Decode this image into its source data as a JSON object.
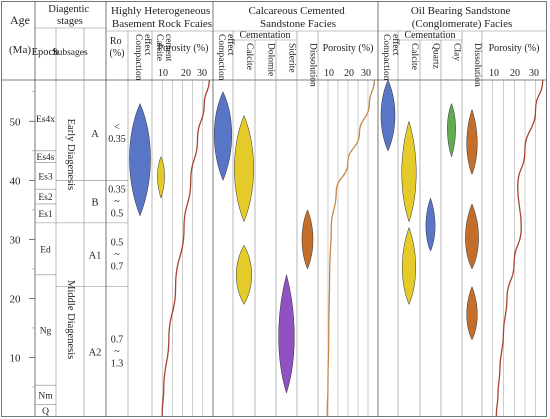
{
  "headers": {
    "age": "Age",
    "ma": "(Ma)",
    "diagenetic_stages": "Diagentic stages",
    "epoch": "Epoch",
    "subsages": "Subsages",
    "ro": "Ro (%)"
  },
  "facies": [
    {
      "id": "f1",
      "title_line1": "Highly Heterogeneous",
      "title_line2": "Basement Rock Fcaies",
      "cols": [
        "Compaction effect",
        "Calcite cement"
      ],
      "porosity_label": "Porosity (%)",
      "porosity_ticks": [
        "10",
        "20",
        "30"
      ]
    },
    {
      "id": "f2",
      "title_line1": "Calcareous Cemented",
      "title_line2": "Sandstone Facies",
      "cols": [
        "Compaction effect",
        "Calcite",
        "Dolomie",
        "Siderite",
        "Dissolution"
      ],
      "cementation_label": "Cementation",
      "porosity_label": "Porosity (%)",
      "porosity_ticks": [
        "10",
        "20",
        "30"
      ]
    },
    {
      "id": "f3",
      "title_line1": "Oil Bearing Sandstone",
      "title_line2": "(Conglomerate) Facies",
      "cols": [
        "Compaction effect",
        "Calcite",
        "Quartz",
        "Clay",
        "Dissolution"
      ],
      "cementation_label": "Cementation",
      "porosity_label": "Porosity (%)",
      "porosity_ticks": [
        "10",
        "20",
        "30"
      ]
    }
  ],
  "age_ticks": [
    "10",
    "20",
    "30",
    "40",
    "50"
  ],
  "strata": [
    "Es4x",
    "Es4s",
    "Es3",
    "Es2",
    "Es1",
    "Ed",
    "Ng",
    "Nm",
    "Q"
  ],
  "epochs": [
    "Early Diagenesis",
    "Middle Diagenesis"
  ],
  "subsages": [
    "A",
    "B",
    "A1",
    "A2"
  ],
  "ro_values": [
    {
      "line1": "<",
      "line2": "0.35"
    },
    {
      "line1": "0.35",
      "line2": "~",
      "line3": "0.5"
    },
    {
      "line1": "0.5",
      "line2": "~",
      "line3": "0.7"
    },
    {
      "line1": "0.7",
      "line2": "~",
      "line3": "1.3"
    }
  ],
  "chart_data": {
    "type": "diagram",
    "y_axis": {
      "label": "Age (Ma)",
      "range": [
        0,
        57
      ],
      "reversed": false
    },
    "stratigraphy": [
      {
        "unit": "Es4x",
        "top": 56,
        "bottom": 45
      },
      {
        "unit": "Es4s",
        "top": 45,
        "bottom": 43
      },
      {
        "unit": "Es3",
        "top": 43,
        "bottom": 38.5
      },
      {
        "unit": "Es2",
        "top": 38.5,
        "bottom": 36
      },
      {
        "unit": "Es1",
        "top": 36,
        "bottom": 32.8
      },
      {
        "unit": "Ed",
        "top": 32.8,
        "bottom": 24
      },
      {
        "unit": "Ng",
        "top": 24,
        "bottom": 5.3
      },
      {
        "unit": "Nm",
        "top": 5.3,
        "bottom": 2
      },
      {
        "unit": "Q",
        "top": 2,
        "bottom": 0
      }
    ],
    "epochs": [
      {
        "name": "Early Diagenesis",
        "top": 56,
        "bottom": 32.8
      },
      {
        "name": "Middle Diagenesis",
        "top": 32.8,
        "bottom": 0
      }
    ],
    "subsages": [
      {
        "name": "A",
        "top": 56,
        "bottom": 40
      },
      {
        "name": "B",
        "top": 40,
        "bottom": 32.8
      },
      {
        "name": "A1",
        "top": 32.8,
        "bottom": 22
      },
      {
        "name": "A2",
        "top": 22,
        "bottom": 0
      }
    ],
    "ro": [
      {
        "value": "<0.35",
        "top": 56,
        "bottom": 40
      },
      {
        "value": "0.35~0.5",
        "top": 40,
        "bottom": 32.8
      },
      {
        "value": "0.5~0.7",
        "top": 32.8,
        "bottom": 22
      },
      {
        "value": "0.7~1.3",
        "top": 22,
        "bottom": 0
      }
    ],
    "process_events": [
      {
        "facies": "Highly Heterogeneous Basement Rock Fcaies",
        "process": "Compaction effect",
        "color": "#4f6fc2",
        "top": 53,
        "bottom": 34,
        "peak": 44,
        "width": 1.0
      },
      {
        "facies": "Highly Heterogeneous Basement Rock Fcaies",
        "process": "Calcite cement",
        "color": "#e3c81e",
        "top": 44,
        "bottom": 37,
        "peak": 41,
        "width": 0.45
      },
      {
        "facies": "Calcareous Cemented Sandstone Facies",
        "process": "Compaction effect",
        "color": "#4f6fc2",
        "top": 55,
        "bottom": 40,
        "peak": 48,
        "width": 1.0
      },
      {
        "facies": "Calcareous Cemented Sandstone Facies",
        "process": "Calcite",
        "color": "#e3c81e",
        "top": 51,
        "bottom": 33,
        "peak": 42,
        "width": 1.0
      },
      {
        "facies": "Calcareous Cemented Sandstone Facies",
        "process": "Calcite",
        "color": "#e3c81e",
        "top": 29,
        "bottom": 19,
        "peak": 24,
        "width": 0.8
      },
      {
        "facies": "Calcareous Cemented Sandstone Facies",
        "process": "Siderite",
        "color": "#8a48c0",
        "top": 24,
        "bottom": 4,
        "peak": 13,
        "width": 0.85
      },
      {
        "facies": "Calcareous Cemented Sandstone Facies",
        "process": "Dissolution",
        "color": "#c0661f",
        "top": 35,
        "bottom": 25,
        "peak": 30,
        "width": 0.6
      },
      {
        "facies": "Oil Bearing Sandstone (Conglomerate) Facies",
        "process": "Compaction effect",
        "color": "#4f6fc2",
        "top": 57,
        "bottom": 45,
        "peak": 51,
        "width": 0.8
      },
      {
        "facies": "Oil Bearing Sandstone (Conglomerate) Facies",
        "process": "Calcite",
        "color": "#e3c81e",
        "top": 50,
        "bottom": 33,
        "peak": 41,
        "width": 0.75
      },
      {
        "facies": "Oil Bearing Sandstone (Conglomerate) Facies",
        "process": "Calcite",
        "color": "#e3c81e",
        "top": 32,
        "bottom": 19,
        "peak": 25,
        "width": 0.7
      },
      {
        "facies": "Oil Bearing Sandstone (Conglomerate) Facies",
        "process": "Quartz",
        "color": "#4f6fc2",
        "top": 37,
        "bottom": 28,
        "peak": 32,
        "width": 0.5
      },
      {
        "facies": "Oil Bearing Sandstone (Conglomerate) Facies",
        "process": "Clay",
        "color": "#5aa64a",
        "top": 53,
        "bottom": 44,
        "peak": 49,
        "width": 0.45
      },
      {
        "facies": "Oil Bearing Sandstone (Conglomerate) Facies",
        "process": "Dissolution",
        "color": "#c0661f",
        "top": 52,
        "bottom": 41,
        "peak": 46,
        "width": 0.6
      },
      {
        "facies": "Oil Bearing Sandstone (Conglomerate) Facies",
        "process": "Dissolution",
        "color": "#c0661f",
        "top": 36,
        "bottom": 25,
        "peak": 30,
        "width": 0.75
      },
      {
        "facies": "Oil Bearing Sandstone (Conglomerate) Facies",
        "process": "Dissolution",
        "color": "#c0661f",
        "top": 22,
        "bottom": 13,
        "peak": 17,
        "width": 0.6
      }
    ],
    "porosity_curves": [
      {
        "facies": "Highly Heterogeneous Basement Rock Fcaies",
        "color": "#a8442e",
        "x_range": [
          0,
          35
        ],
        "points": [
          [
            34,
            57
          ],
          [
            31,
            53
          ],
          [
            27,
            47
          ],
          [
            23,
            40
          ],
          [
            19,
            32
          ],
          [
            14,
            22
          ],
          [
            10,
            13
          ],
          [
            7,
            5
          ],
          [
            6,
            0
          ]
        ]
      },
      {
        "facies": "Calcareous Cemented Sandstone Facies",
        "color": "#c6874a",
        "x_range": [
          0,
          35
        ],
        "points": [
          [
            34,
            57
          ],
          [
            31,
            53
          ],
          [
            25,
            48
          ],
          [
            18,
            43
          ],
          [
            11,
            38
          ],
          [
            8,
            32
          ],
          [
            7,
            24
          ],
          [
            6.5,
            14
          ],
          [
            6,
            5
          ],
          [
            5.5,
            0
          ]
        ]
      },
      {
        "facies": "Oil Bearing Sandstone (Conglomerate) Facies",
        "color": "#a8442e",
        "x_range": [
          0,
          35
        ],
        "points": [
          [
            34,
            57
          ],
          [
            30,
            52
          ],
          [
            24,
            45
          ],
          [
            20,
            39
          ],
          [
            22,
            32
          ],
          [
            18,
            26
          ],
          [
            14,
            20
          ],
          [
            12,
            14
          ],
          [
            10,
            8
          ],
          [
            9,
            4
          ],
          [
            8,
            0
          ]
        ]
      }
    ],
    "colors": {
      "compaction": "#4f6fc2",
      "calcite": "#e3c81e",
      "siderite": "#8a48c0",
      "dissolution": "#c0661f",
      "clay": "#5aa64a",
      "porosity_dark": "#a8442e",
      "porosity_light": "#c6874a"
    }
  }
}
